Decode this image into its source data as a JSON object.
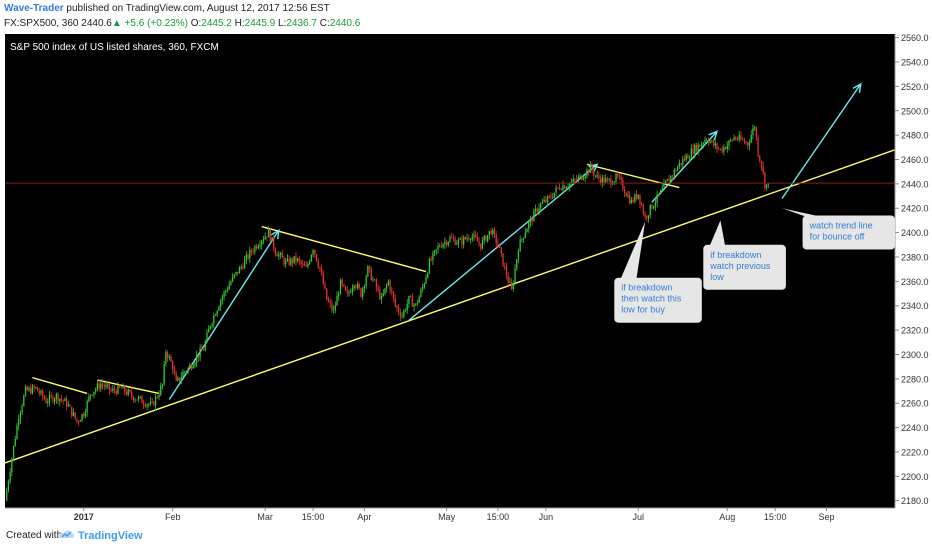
{
  "header": {
    "author": "Wave-Trader",
    "published_text": " published on TradingView.com, August 12, 2017 12:56 EST",
    "symbol_info": "FX:SPX500, 360  2440.6",
    "change": " +5.6 (+0.23%)",
    "open_label": " O:",
    "open_value": "2445.2",
    "high_label": " H:",
    "high_value": "2445.9",
    "low_label": " L:",
    "low_value": "2436.7",
    "close_label": " C:",
    "close_value": "2440.6"
  },
  "footer": {
    "created_with": "Created with",
    "brand": "TradingView"
  },
  "chart_data": {
    "type": "candlestick",
    "title": "S&P 500 index of US listed shares, 360, FXCM",
    "x_tick_labels": [
      "2017",
      "Feb",
      "Mar",
      "15:00",
      "Apr",
      "May",
      "15:00",
      "Jun",
      "Jul",
      "Aug",
      "15:00",
      "Sep"
    ],
    "y_tick_labels": [
      "2180.0",
      "2200.0",
      "2220.0",
      "2240.0",
      "2260.0",
      "2280.0",
      "2300.0",
      "2320.0",
      "2340.0",
      "2360.0",
      "2380.0",
      "2400.0",
      "2420.0",
      "2440.0",
      "2460.0",
      "2480.0",
      "2500.0",
      "2520.0",
      "2540.0",
      "2560.0"
    ],
    "ylim": [
      2174,
      2563
    ],
    "xlim": [
      0,
      260
    ],
    "y_ticks": [
      2180,
      2200,
      2220,
      2240,
      2260,
      2280,
      2300,
      2320,
      2340,
      2360,
      2380,
      2400,
      2420,
      2440,
      2460,
      2480,
      2500,
      2520,
      2540,
      2560
    ],
    "x_tick_positions": [
      23,
      49,
      76,
      90,
      105,
      129,
      144,
      158,
      185,
      211,
      225,
      240
    ],
    "last_price": 2440.6,
    "last_price_label": "2440.6",
    "price_path": [
      [
        0,
        2180
      ],
      [
        2,
        2215
      ],
      [
        4,
        2250
      ],
      [
        6,
        2270
      ],
      [
        9,
        2272
      ],
      [
        12,
        2262
      ],
      [
        15,
        2266
      ],
      [
        18,
        2260
      ],
      [
        21,
        2245
      ],
      [
        23,
        2252
      ],
      [
        25,
        2268
      ],
      [
        28,
        2276
      ],
      [
        31,
        2270
      ],
      [
        34,
        2272
      ],
      [
        37,
        2266
      ],
      [
        40,
        2262
      ],
      [
        43,
        2258
      ],
      [
        46,
        2275
      ],
      [
        47,
        2303
      ],
      [
        49,
        2290
      ],
      [
        50,
        2276
      ],
      [
        52,
        2285
      ],
      [
        54,
        2290
      ],
      [
        56,
        2298
      ],
      [
        58,
        2305
      ],
      [
        60,
        2325
      ],
      [
        63,
        2345
      ],
      [
        66,
        2360
      ],
      [
        69,
        2372
      ],
      [
        72,
        2385
      ],
      [
        75,
        2395
      ],
      [
        77,
        2400
      ],
      [
        79,
        2385
      ],
      [
        82,
        2375
      ],
      [
        85,
        2378
      ],
      [
        88,
        2370
      ],
      [
        90,
        2388
      ],
      [
        92,
        2370
      ],
      [
        94,
        2345
      ],
      [
        96,
        2335
      ],
      [
        98,
        2358
      ],
      [
        100,
        2348
      ],
      [
        102,
        2360
      ],
      [
        104,
        2350
      ],
      [
        106,
        2370
      ],
      [
        108,
        2358
      ],
      [
        110,
        2345
      ],
      [
        112,
        2360
      ],
      [
        114,
        2340
      ],
      [
        116,
        2332
      ],
      [
        118,
        2345
      ],
      [
        120,
        2340
      ],
      [
        122,
        2355
      ],
      [
        124,
        2375
      ],
      [
        127,
        2390
      ],
      [
        130,
        2395
      ],
      [
        133,
        2392
      ],
      [
        136,
        2398
      ],
      [
        139,
        2390
      ],
      [
        142,
        2402
      ],
      [
        144,
        2390
      ],
      [
        146,
        2370
      ],
      [
        148,
        2352
      ],
      [
        150,
        2388
      ],
      [
        152,
        2402
      ],
      [
        154,
        2412
      ],
      [
        156,
        2422
      ],
      [
        159,
        2428
      ],
      [
        162,
        2438
      ],
      [
        165,
        2440
      ],
      [
        168,
        2445
      ],
      [
        171,
        2453
      ],
      [
        173,
        2445
      ],
      [
        176,
        2442
      ],
      [
        179,
        2445
      ],
      [
        181,
        2435
      ],
      [
        183,
        2425
      ],
      [
        185,
        2432
      ],
      [
        187,
        2412
      ],
      [
        189,
        2422
      ],
      [
        191,
        2430
      ],
      [
        193,
        2440
      ],
      [
        195,
        2448
      ],
      [
        197,
        2456
      ],
      [
        199,
        2462
      ],
      [
        201,
        2468
      ],
      [
        203,
        2472
      ],
      [
        205,
        2478
      ],
      [
        207,
        2472
      ],
      [
        209,
        2468
      ],
      [
        211,
        2472
      ],
      [
        213,
        2478
      ],
      [
        215,
        2476
      ],
      [
        217,
        2473
      ],
      [
        219,
        2488
      ],
      [
        220,
        2466
      ],
      [
        221,
        2456
      ],
      [
        222,
        2440
      ],
      [
        223,
        2438
      ]
    ],
    "trendlines": [
      {
        "name": "support",
        "color": "#ffff66",
        "points": [
          [
            0,
            2211
          ],
          [
            260,
            2468
          ]
        ]
      },
      {
        "name": "resistance-1",
        "color": "#ffff66",
        "points": [
          [
            8,
            2281
          ],
          [
            24,
            2268
          ]
        ]
      },
      {
        "name": "resistance-2",
        "color": "#ffff66",
        "points": [
          [
            27,
            2279
          ],
          [
            45,
            2268
          ]
        ]
      },
      {
        "name": "resistance-3",
        "color": "#ffff66",
        "points": [
          [
            75,
            2405
          ],
          [
            123,
            2368
          ]
        ]
      },
      {
        "name": "resistance-4",
        "color": "#ffff66",
        "points": [
          [
            170,
            2456
          ],
          [
            197,
            2437
          ]
        ]
      },
      {
        "name": "arrow-1",
        "color": "#6ee8f0",
        "arrow": true,
        "points": [
          [
            48,
            2263
          ],
          [
            80,
            2402
          ]
        ]
      },
      {
        "name": "arrow-2",
        "color": "#6ee8f0",
        "arrow": true,
        "points": [
          [
            118,
            2328
          ],
          [
            173,
            2456
          ]
        ]
      },
      {
        "name": "arrow-3",
        "color": "#6ee8f0",
        "arrow": true,
        "points": [
          [
            189,
            2425
          ],
          [
            208,
            2483
          ]
        ]
      },
      {
        "name": "arrow-4",
        "color": "#6ee8f0",
        "arrow": true,
        "points": [
          [
            227,
            2428
          ],
          [
            250,
            2522
          ]
        ]
      }
    ],
    "annotations": [
      {
        "text": [
          "if breakdown",
          "then watch this",
          "low for buy"
        ],
        "anchor": [
          187,
          2409
        ],
        "box": [
          178,
          2363
        ]
      },
      {
        "text": [
          "if breakdown",
          "watch previous",
          "low"
        ],
        "anchor": [
          209,
          2410
        ],
        "box": [
          204,
          2390
        ]
      },
      {
        "text": [
          "watch trend line",
          "for bounce off"
        ],
        "anchor": [
          227,
          2420
        ],
        "box": [
          233,
          2414
        ]
      }
    ],
    "colors": {
      "up": "#33cc33",
      "down": "#e8352f",
      "background": "#000000",
      "last_price_bg": "#e8352f"
    }
  }
}
